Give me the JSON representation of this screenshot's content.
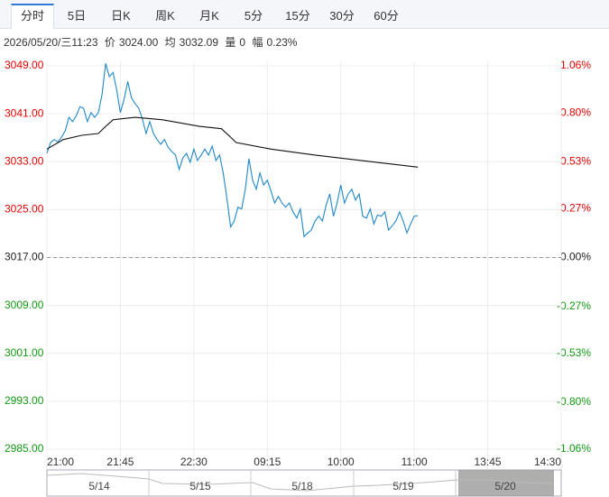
{
  "tabs": [
    "分时",
    "5日",
    "日K",
    "周K",
    "月K",
    "5分",
    "15分",
    "30分",
    "60分"
  ],
  "active_tab": 0,
  "info": {
    "time": "2026/05/20/三11:23",
    "price": "3024.00",
    "avg": "3032.09",
    "volume_label": "量",
    "volume": "0",
    "range_label": "幅",
    "range": "0.23%"
  },
  "chart_data": {
    "type": "line",
    "xlim": [
      0,
      280
    ],
    "xticks": [
      {
        "value": 0,
        "label": "21:00"
      },
      {
        "value": 40,
        "label": "21:45"
      },
      {
        "value": 80,
        "label": "22:30"
      },
      {
        "value": 120,
        "label": "09:15"
      },
      {
        "value": 160,
        "label": "10:00"
      },
      {
        "value": 200,
        "label": "11:00"
      },
      {
        "value": 240,
        "label": "13:45"
      },
      {
        "value": 280,
        "label": "14:30"
      }
    ],
    "ylim": [
      2985,
      3049
    ],
    "yticks": [
      {
        "value": 3049,
        "label": "3049.00"
      },
      {
        "value": 3041,
        "label": "3041.00"
      },
      {
        "value": 3033,
        "label": "3033.00"
      },
      {
        "value": 3025,
        "label": "3025.00"
      },
      {
        "value": 3017,
        "label": "3017.00"
      },
      {
        "value": 3009,
        "label": "3009.00"
      },
      {
        "value": 3001,
        "label": "3001.00"
      },
      {
        "value": 2993,
        "label": "2993.00"
      },
      {
        "value": 2985,
        "label": "2985.00"
      }
    ],
    "y2lim": [
      -1.06,
      1.06
    ],
    "y2ticks": [
      {
        "value": 1.06,
        "label": "1.06%"
      },
      {
        "value": 0.8,
        "label": "0.80%"
      },
      {
        "value": 0.53,
        "label": "0.53%"
      },
      {
        "value": 0.27,
        "label": "0.27%"
      },
      {
        "value": 0,
        "label": "0.00%"
      },
      {
        "value": -0.27,
        "label": "-0.27%"
      },
      {
        "value": -0.53,
        "label": "-0.53%"
      },
      {
        "value": -0.8,
        "label": "-0.80%"
      },
      {
        "value": -1.06,
        "label": "-1.06%"
      }
    ],
    "baseline": 3017,
    "up_color": "#e60000",
    "down_color": "#119911",
    "grid": true,
    "series": [
      {
        "name": "价",
        "color": "#1e88c8",
        "x": [
          0,
          2,
          4,
          6,
          8,
          10,
          12,
          14,
          16,
          18,
          20,
          22,
          24,
          26,
          28,
          30,
          32,
          34,
          36,
          38,
          40,
          42,
          44,
          46,
          48,
          50,
          52,
          54,
          56,
          58,
          60,
          62,
          64,
          66,
          68,
          70,
          72,
          74,
          76,
          78,
          80,
          82,
          84,
          86,
          88,
          90,
          92,
          94,
          96,
          98,
          100,
          102,
          104,
          106,
          108,
          110,
          112,
          114,
          116,
          118,
          120,
          122,
          124,
          126,
          128,
          130,
          132,
          134,
          136,
          138,
          140,
          142,
          144,
          146,
          148,
          150,
          152,
          154,
          156,
          158,
          160,
          162,
          164,
          166,
          168,
          170,
          172,
          174,
          176,
          178,
          180,
          182,
          184,
          186,
          188,
          190,
          192,
          194,
          196,
          198,
          200,
          202
        ],
        "values": [
          3034.4,
          3036.2,
          3036.7,
          3036.3,
          3037.1,
          3038.2,
          3040.4,
          3039.7,
          3040.7,
          3042.2,
          3041.9,
          3039.7,
          3041.2,
          3040.4,
          3041.2,
          3044.2,
          3049.4,
          3047.2,
          3047.9,
          3044.9,
          3041.2,
          3043.4,
          3046.4,
          3043.7,
          3042.7,
          3041.9,
          3040.1,
          3037.7,
          3039.7,
          3037.7,
          3036.7,
          3035.9,
          3036.7,
          3035.4,
          3034.7,
          3034.1,
          3031.7,
          3033.6,
          3034.4,
          3032.9,
          3035.1,
          3033.2,
          3034.1,
          3035.1,
          3034.1,
          3035.6,
          3033.2,
          3034.1,
          3031.1,
          3026.9,
          3022.1,
          3023.1,
          3025.4,
          3025.1,
          3028.4,
          3033.5,
          3029.9,
          3028.4,
          3031.1,
          3029.1,
          3029.9,
          3028.1,
          3026.1,
          3027.2,
          3026.1,
          3025.4,
          3026.1,
          3024.6,
          3023.6,
          3025.1,
          3020.5,
          3021.1,
          3021.6,
          3023.1,
          3023.9,
          3023.1,
          3025.7,
          3027.6,
          3023.9,
          3026.1,
          3029.1,
          3026.1,
          3027.6,
          3028.4,
          3026.6,
          3027.6,
          3023.9,
          3023.6,
          3025.1,
          3022.6,
          3024.1,
          3023.9,
          3024.6,
          3021.6,
          3022.3,
          3023.1,
          3024.6,
          3023.1,
          3021.1,
          3022.6,
          3023.9,
          3024.0
        ]
      },
      {
        "name": "均",
        "color": "#111111",
        "x": [
          0,
          9,
          19,
          28,
          32,
          36,
          48,
          63,
          83,
          95,
          100,
          103,
          122,
          146,
          171,
          202
        ],
        "values": [
          3035.1,
          3036.7,
          3037.4,
          3037.7,
          3038.9,
          3040.0,
          3040.4,
          3040.0,
          3038.9,
          3038.5,
          3037.1,
          3036.2,
          3035.1,
          3034.1,
          3033.2,
          3032.09
        ]
      }
    ],
    "navigator_dates": [
      "5/14",
      "5/15",
      "5/18",
      "5/19",
      "5/20"
    ]
  }
}
